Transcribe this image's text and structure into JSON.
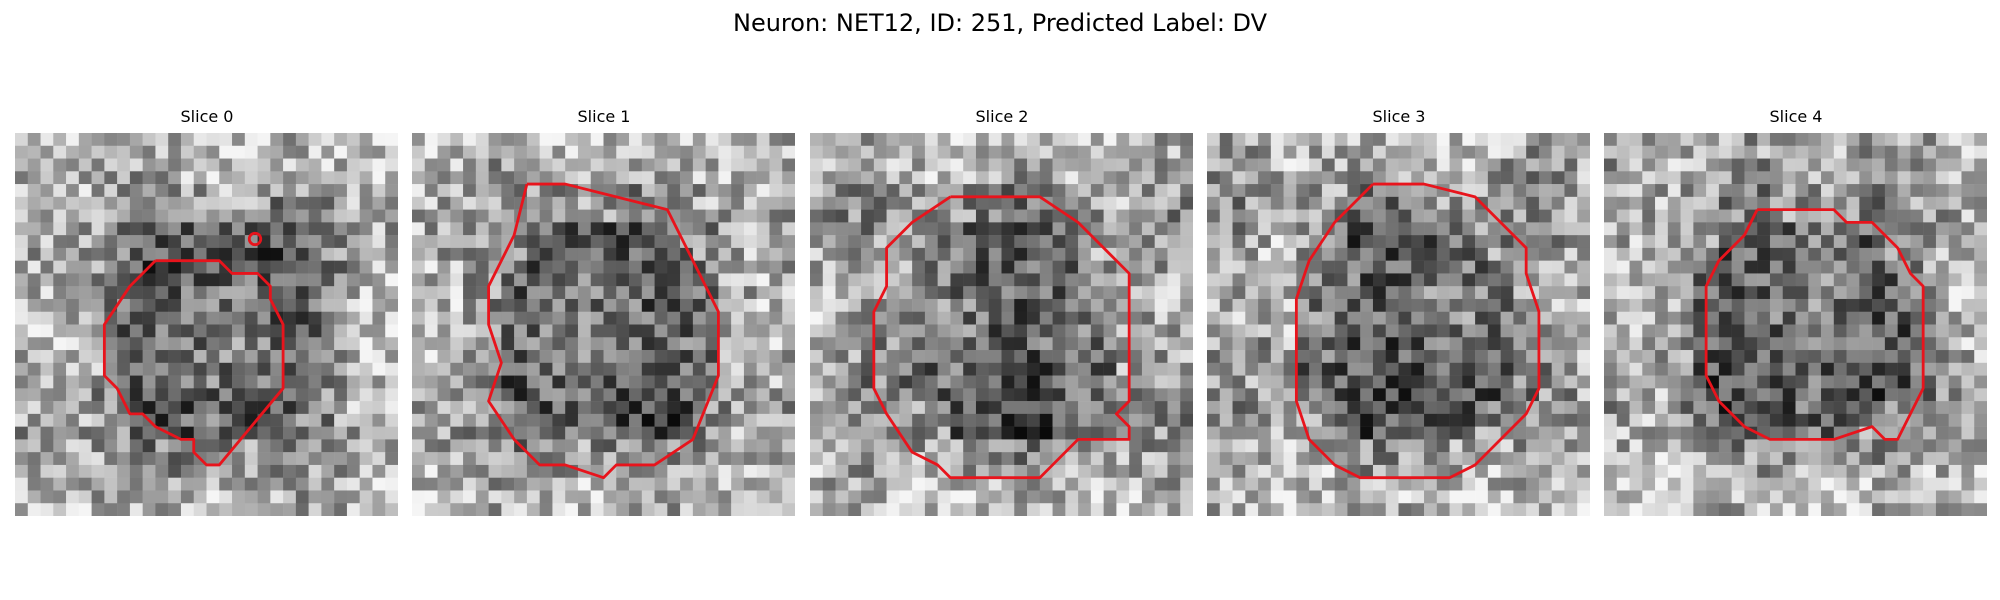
{
  "figure": {
    "title": "Neuron: NET12, ID: 251, Predicted Label: DV"
  },
  "contour_color": "#e8141c",
  "slices": [
    {
      "title": "Slice 0"
    },
    {
      "title": "Slice 1"
    },
    {
      "title": "Slice 2"
    },
    {
      "title": "Slice 3"
    },
    {
      "title": "Slice 4"
    }
  ]
}
